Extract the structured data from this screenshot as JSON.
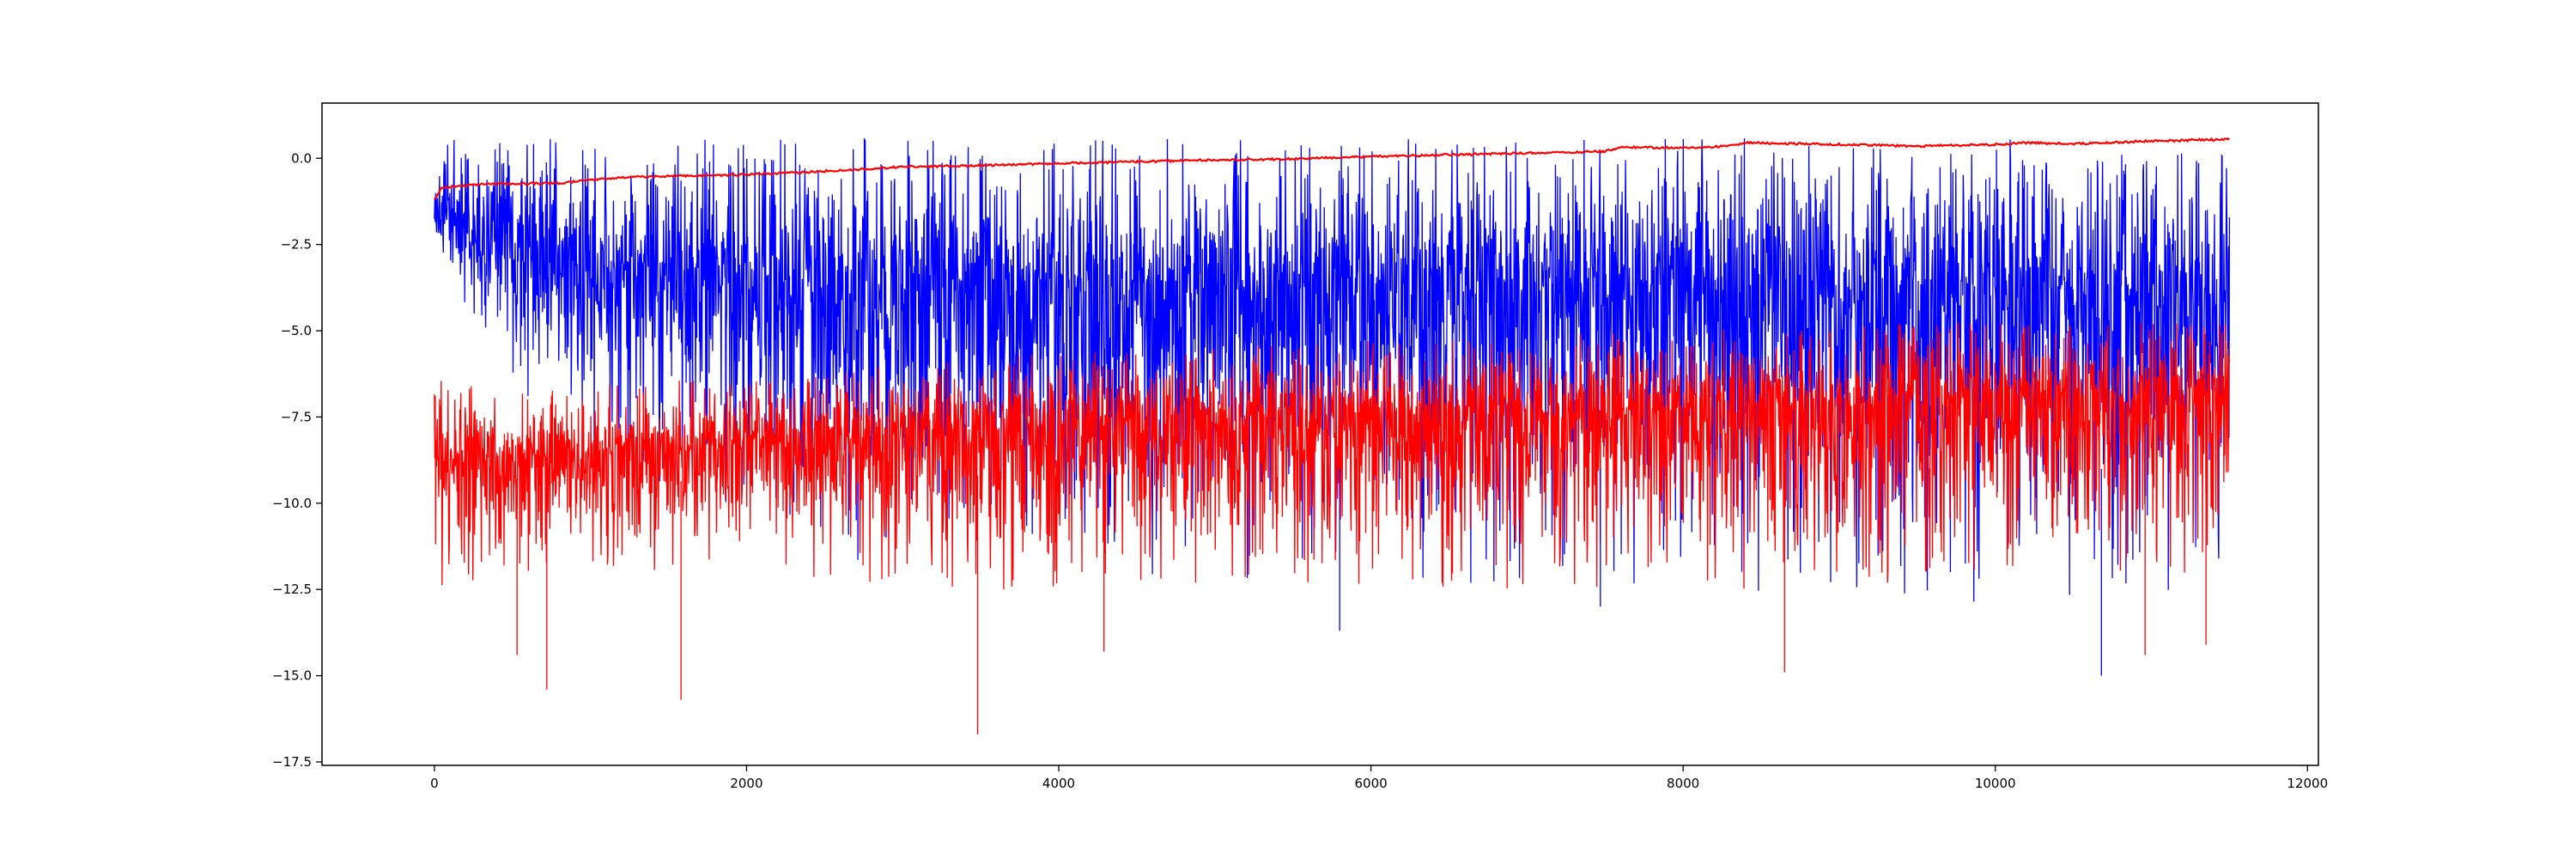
{
  "chart_data": {
    "type": "line",
    "title": "",
    "xlabel": "",
    "ylabel": "",
    "xlim": [
      -720,
      12070
    ],
    "ylim": [
      -17.6,
      1.6
    ],
    "x_ticks": [
      0,
      2000,
      4000,
      6000,
      8000,
      10000,
      12000
    ],
    "x_tick_labels": [
      "0",
      "2000",
      "4000",
      "6000",
      "8000",
      "10000",
      "12000"
    ],
    "y_ticks": [
      0.0,
      -2.5,
      -5.0,
      -7.5,
      -10.0,
      -12.5,
      -15.0,
      -17.5
    ],
    "y_tick_labels": [
      "0.0",
      "−2.5",
      "−5.0",
      "−7.5",
      "−10.0",
      "−12.5",
      "−15.0",
      "−17.5"
    ],
    "grid": false,
    "legend": "none",
    "x_range": [
      0,
      11500
    ],
    "series": [
      {
        "color": "#0000ff",
        "style": "noisy",
        "description_points": {
          "x": [
            0,
            500,
            1000,
            2000,
            4000,
            6000,
            8000,
            10000,
            11500
          ],
          "center": [
            -1.5,
            -2.6,
            -3.2,
            -3.6,
            -3.9,
            -4.0,
            -4.0,
            -4.0,
            -4.0
          ],
          "upper": [
            0.6,
            0.6,
            0.6,
            0.6,
            0.6,
            0.6,
            0.6,
            0.6,
            0.1
          ],
          "lower": [
            -3.0,
            -6.5,
            -8.5,
            -10.5,
            -12.0,
            -12.5,
            -12.5,
            -13.0,
            -12.5
          ]
        }
      },
      {
        "color": "#ff0000",
        "style": "noisy",
        "description_points": {
          "x": [
            0,
            1000,
            2000,
            3000,
            4000,
            6000,
            8000,
            10000,
            11500
          ],
          "center": [
            -8.8,
            -8.7,
            -8.4,
            -8.0,
            -7.8,
            -7.5,
            -7.3,
            -7.1,
            -7.0
          ],
          "upper": [
            -6.4,
            -6.5,
            -6.4,
            -6.0,
            -5.6,
            -5.3,
            -5.0,
            -4.7,
            -4.8
          ],
          "lower": [
            -12.5,
            -12.0,
            -12.0,
            -12.5,
            -12.5,
            -12.5,
            -12.5,
            -12.5,
            -12.0
          ]
        }
      },
      {
        "color": "#ff0000",
        "style": "smooth",
        "x": [
          0,
          50,
          300,
          800,
          1200,
          1800,
          2400,
          3000,
          3600,
          4000,
          4500,
          5000,
          5500,
          6000,
          6500,
          7000,
          7500,
          7600,
          8000,
          8300,
          8400,
          9000,
          9500,
          10000,
          10200,
          10500,
          11000,
          11500
        ],
        "y": [
          -1.2,
          -0.85,
          -0.75,
          -0.72,
          -0.55,
          -0.5,
          -0.4,
          -0.25,
          -0.2,
          -0.15,
          -0.1,
          -0.05,
          -0.02,
          0.05,
          0.1,
          0.15,
          0.2,
          0.32,
          0.3,
          0.35,
          0.45,
          0.4,
          0.35,
          0.4,
          0.45,
          0.42,
          0.5,
          0.55
        ]
      }
    ]
  }
}
